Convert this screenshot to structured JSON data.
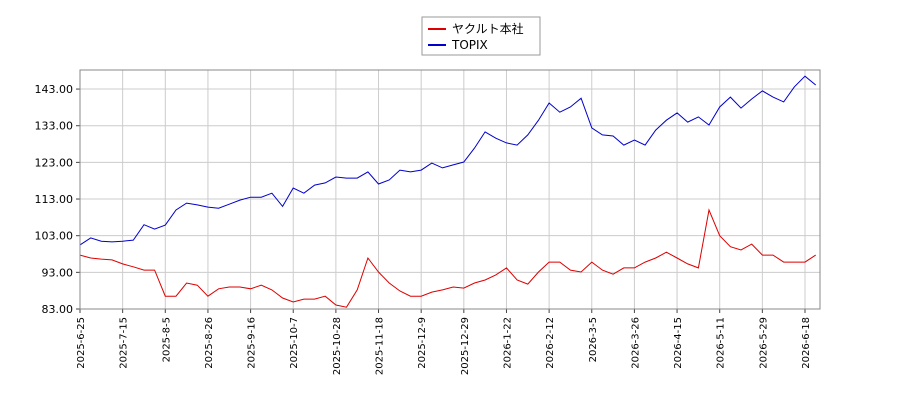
{
  "chart_data": {
    "type": "line",
    "categories": [
      "2025-6-25",
      null,
      null,
      null,
      "2025-7-15",
      null,
      null,
      null,
      "2025-8-5",
      null,
      null,
      null,
      "2025-8-26",
      null,
      null,
      null,
      "2025-9-16",
      null,
      null,
      null,
      "2025-10-7",
      null,
      null,
      null,
      "2025-10-28",
      null,
      null,
      null,
      "2025-11-18",
      null,
      null,
      null,
      "2025-12-9",
      null,
      null,
      null,
      "2025-12-29",
      null,
      null,
      null,
      "2026-1-22",
      null,
      null,
      null,
      "2026-2-12",
      null,
      null,
      null,
      "2026-3-5",
      null,
      null,
      null,
      "2026-3-26",
      null,
      null,
      null,
      "2026-4-15",
      null,
      null,
      null,
      "2026-5-11",
      null,
      null,
      null,
      "2026-5-29",
      null,
      null,
      null,
      "2026-6-18",
      null
    ],
    "series": [
      {
        "name": "ヤクルト本社",
        "color": "#dd0000",
        "values": [
          97.7,
          96.9,
          96.6,
          96.4,
          95.3,
          94.5,
          93.6,
          93.6,
          86.5,
          86.5,
          90.1,
          89.5,
          86.5,
          88.5,
          89,
          89,
          88.5,
          89.5,
          88.2,
          86,
          84.9,
          85.7,
          85.7,
          86.5,
          84.1,
          83.5,
          88.2,
          96.9,
          93.1,
          90.1,
          87.9,
          86.5,
          86.5,
          87.6,
          88.2,
          89,
          88.7,
          90.1,
          90.9,
          92.3,
          94.2,
          90.9,
          89.8,
          93.1,
          95.8,
          95.8,
          93.6,
          93.1,
          95.8,
          93.6,
          92.5,
          94.2,
          94.2,
          95.8,
          96.9,
          98.5,
          96.9,
          95.3,
          94.2,
          110,
          103,
          100,
          99.1,
          100.7,
          97.7,
          97.7,
          95.8,
          95.8,
          95.8,
          97.7
        ]
      },
      {
        "name": "TOPIX",
        "color": "#0000cc",
        "values": [
          100.5,
          102.4,
          101.5,
          101.3,
          101.5,
          101.8,
          106,
          104.8,
          105.9,
          110,
          111.9,
          111.4,
          110.8,
          110.5,
          111.6,
          112.7,
          113.5,
          113.5,
          114.6,
          111,
          116,
          114.6,
          116.8,
          117.4,
          119,
          118.7,
          118.7,
          120.4,
          117.1,
          118.2,
          120.9,
          120.4,
          120.9,
          122.8,
          121.5,
          122.3,
          123.1,
          126.9,
          131.3,
          129.6,
          128.3,
          127.7,
          130.5,
          134.5,
          139.2,
          136.7,
          138.1,
          140.5,
          132.4,
          130.5,
          130.2,
          127.7,
          129.1,
          127.7,
          131.8,
          134.5,
          136.5,
          134,
          135.4,
          133.2,
          138.1,
          140.8,
          137.8,
          140.3,
          142.5,
          140.8,
          139.5,
          143.6,
          146.5,
          144.1
        ]
      }
    ],
    "ylim": [
      83,
      148.2
    ],
    "yticks": [
      {
        "value": 83,
        "label": "83.00"
      },
      {
        "value": 93,
        "label": "93.00"
      },
      {
        "value": 103,
        "label": "103.00"
      },
      {
        "value": 113,
        "label": "113.00"
      },
      {
        "value": 123,
        "label": "123.00"
      },
      {
        "value": 133,
        "label": "133.00"
      },
      {
        "value": 143,
        "label": "143.00"
      }
    ],
    "grid": true,
    "legend": "top"
  }
}
